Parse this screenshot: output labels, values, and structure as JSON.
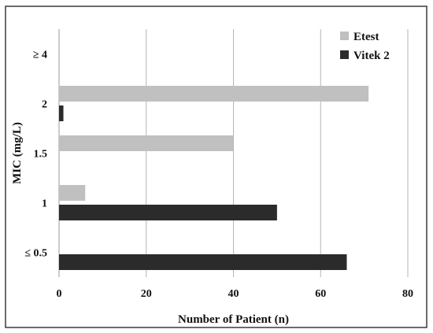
{
  "chart_data": {
    "type": "bar",
    "orientation": "horizontal",
    "categories": [
      "≤ 0.5",
      "1",
      "1.5",
      "2",
      "≥ 4"
    ],
    "series": [
      {
        "name": "Etest",
        "color": "#c0c0c0",
        "values": [
          0,
          6,
          40,
          71,
          0
        ]
      },
      {
        "name": "Vitek 2",
        "color": "#2b2b2b",
        "values": [
          66,
          50,
          0,
          1,
          0
        ]
      }
    ],
    "xlabel": "Number of Patient (n)",
    "ylabel": "MIC (mg/L)",
    "xlim": [
      0,
      80
    ],
    "xticks": [
      0,
      20,
      40,
      60,
      80
    ],
    "grid": "vertical",
    "legend_position": "top-right"
  }
}
